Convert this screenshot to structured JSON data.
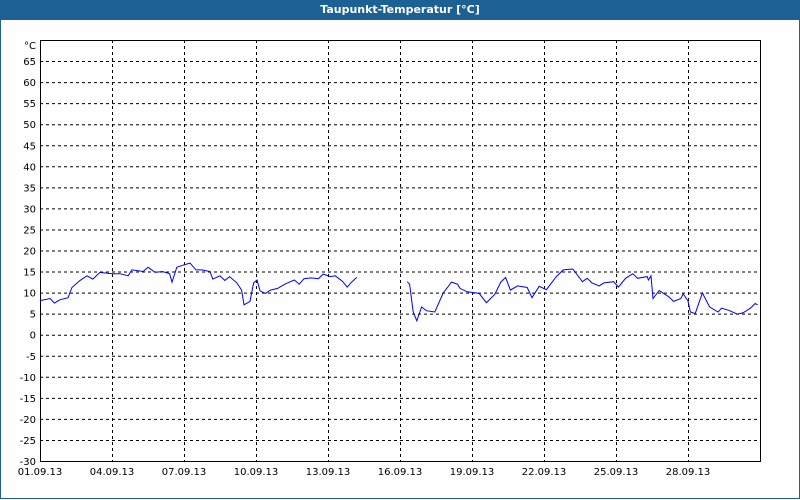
{
  "chart_data": {
    "type": "line",
    "title": "Taupunkt-Temperatur [°C]",
    "ylabel": "°C",
    "ylim": [
      -30,
      70
    ],
    "yticks": [
      65,
      60,
      55,
      50,
      45,
      40,
      35,
      30,
      25,
      20,
      15,
      10,
      5,
      0,
      -5,
      -10,
      -15,
      -20,
      -25,
      -30
    ],
    "xlim_days": [
      0,
      30
    ],
    "xticks": [
      "01.09.13",
      "04.09.13",
      "07.09.13",
      "10.09.13",
      "13.09.13",
      "16.09.13",
      "19.09.13",
      "22.09.13",
      "25.09.13",
      "28.09.13"
    ],
    "grid": true,
    "line_color": "#0000ff",
    "series": [
      {
        "segments": [
          [
            [
              0,
              8.1
            ],
            [
              0.42,
              8.6
            ],
            [
              0.6,
              7.5
            ],
            [
              0.83,
              8.3
            ],
            [
              1.17,
              8.8
            ],
            [
              1.33,
              11.2
            ],
            [
              1.67,
              12.9
            ],
            [
              1.96,
              14
            ],
            [
              2.2,
              13.2
            ],
            [
              2.5,
              14.8
            ],
            [
              3,
              14.5
            ],
            [
              3.33,
              14.5
            ],
            [
              3.67,
              14
            ],
            [
              3.83,
              15.4
            ],
            [
              4.3,
              15
            ],
            [
              4.5,
              16
            ],
            [
              4.8,
              14.8
            ],
            [
              5.1,
              15
            ],
            [
              5.4,
              14.5
            ],
            [
              5.5,
              12.5
            ],
            [
              5.7,
              16
            ],
            [
              5.96,
              16.5
            ],
            [
              6.25,
              17
            ],
            [
              6.5,
              15.4
            ],
            [
              6.75,
              15.4
            ],
            [
              7.08,
              15
            ],
            [
              7.2,
              13.2
            ],
            [
              7.5,
              14
            ],
            [
              7.7,
              12.9
            ],
            [
              7.9,
              13.8
            ],
            [
              8.2,
              12.3
            ],
            [
              8.4,
              10.6
            ],
            [
              8.5,
              7.1
            ],
            [
              8.75,
              7.9
            ],
            [
              8.9,
              12.3
            ],
            [
              9.04,
              13
            ],
            [
              9.17,
              10.4
            ],
            [
              9.4,
              9.8
            ],
            [
              9.6,
              10.6
            ],
            [
              9.9,
              11
            ],
            [
              10.2,
              12
            ],
            [
              10.4,
              12.5
            ],
            [
              10.6,
              13
            ],
            [
              10.8,
              12
            ],
            [
              11.0,
              13.3
            ],
            [
              11.3,
              13.5
            ],
            [
              11.6,
              13.3
            ],
            [
              11.8,
              14.4
            ],
            [
              12.1,
              13.8
            ],
            [
              12.3,
              14
            ],
            [
              12.6,
              12.7
            ],
            [
              12.8,
              11.3
            ],
            [
              13.0,
              12.6
            ],
            [
              13.2,
              13.6
            ]
          ],
          [
            [
              15.3,
              12.6
            ],
            [
              15.4,
              12
            ],
            [
              15.55,
              5.4
            ],
            [
              15.7,
              3.3
            ],
            [
              15.9,
              6.6
            ],
            [
              16.1,
              5.7
            ],
            [
              16.45,
              5.4
            ],
            [
              16.8,
              9.9
            ],
            [
              17.15,
              12.5
            ],
            [
              17.4,
              12
            ],
            [
              17.5,
              11
            ],
            [
              17.8,
              10.2
            ],
            [
              18.3,
              9.8
            ],
            [
              18.6,
              7.6
            ],
            [
              18.95,
              9.6
            ],
            [
              19.2,
              12.5
            ],
            [
              19.4,
              13.6
            ],
            [
              19.6,
              10.6
            ],
            [
              19.9,
              11.6
            ],
            [
              20.3,
              11.2
            ],
            [
              20.5,
              8.8
            ],
            [
              20.8,
              11.5
            ],
            [
              21.1,
              10.7
            ],
            [
              21.5,
              13.7
            ],
            [
              21.8,
              15.4
            ],
            [
              22.2,
              15.6
            ],
            [
              22.6,
              12.6
            ],
            [
              22.8,
              13.4
            ],
            [
              23.0,
              12.3
            ],
            [
              23.3,
              11.6
            ],
            [
              23.5,
              12.3
            ],
            [
              23.9,
              12.6
            ],
            [
              24.1,
              11.3
            ],
            [
              24.4,
              13.4
            ],
            [
              24.7,
              14.5
            ],
            [
              24.9,
              13.4
            ],
            [
              25.3,
              13.8
            ],
            [
              25.35,
              13
            ],
            [
              25.46,
              14
            ],
            [
              25.54,
              8.6
            ],
            [
              25.8,
              10.5
            ],
            [
              26.2,
              9
            ],
            [
              26.4,
              7.9
            ],
            [
              26.7,
              8.6
            ],
            [
              26.8,
              9.7
            ],
            [
              27.0,
              8
            ],
            [
              27.1,
              5.4
            ],
            [
              27.3,
              5
            ],
            [
              27.6,
              9.9
            ],
            [
              27.9,
              6.6
            ],
            [
              28.25,
              5.4
            ],
            [
              28.4,
              6.3
            ],
            [
              28.7,
              5.8
            ],
            [
              29.05,
              4.9
            ],
            [
              29.3,
              5.2
            ],
            [
              29.6,
              6.3
            ],
            [
              29.8,
              7.4
            ],
            [
              29.9,
              7.1
            ]
          ]
        ]
      }
    ]
  }
}
